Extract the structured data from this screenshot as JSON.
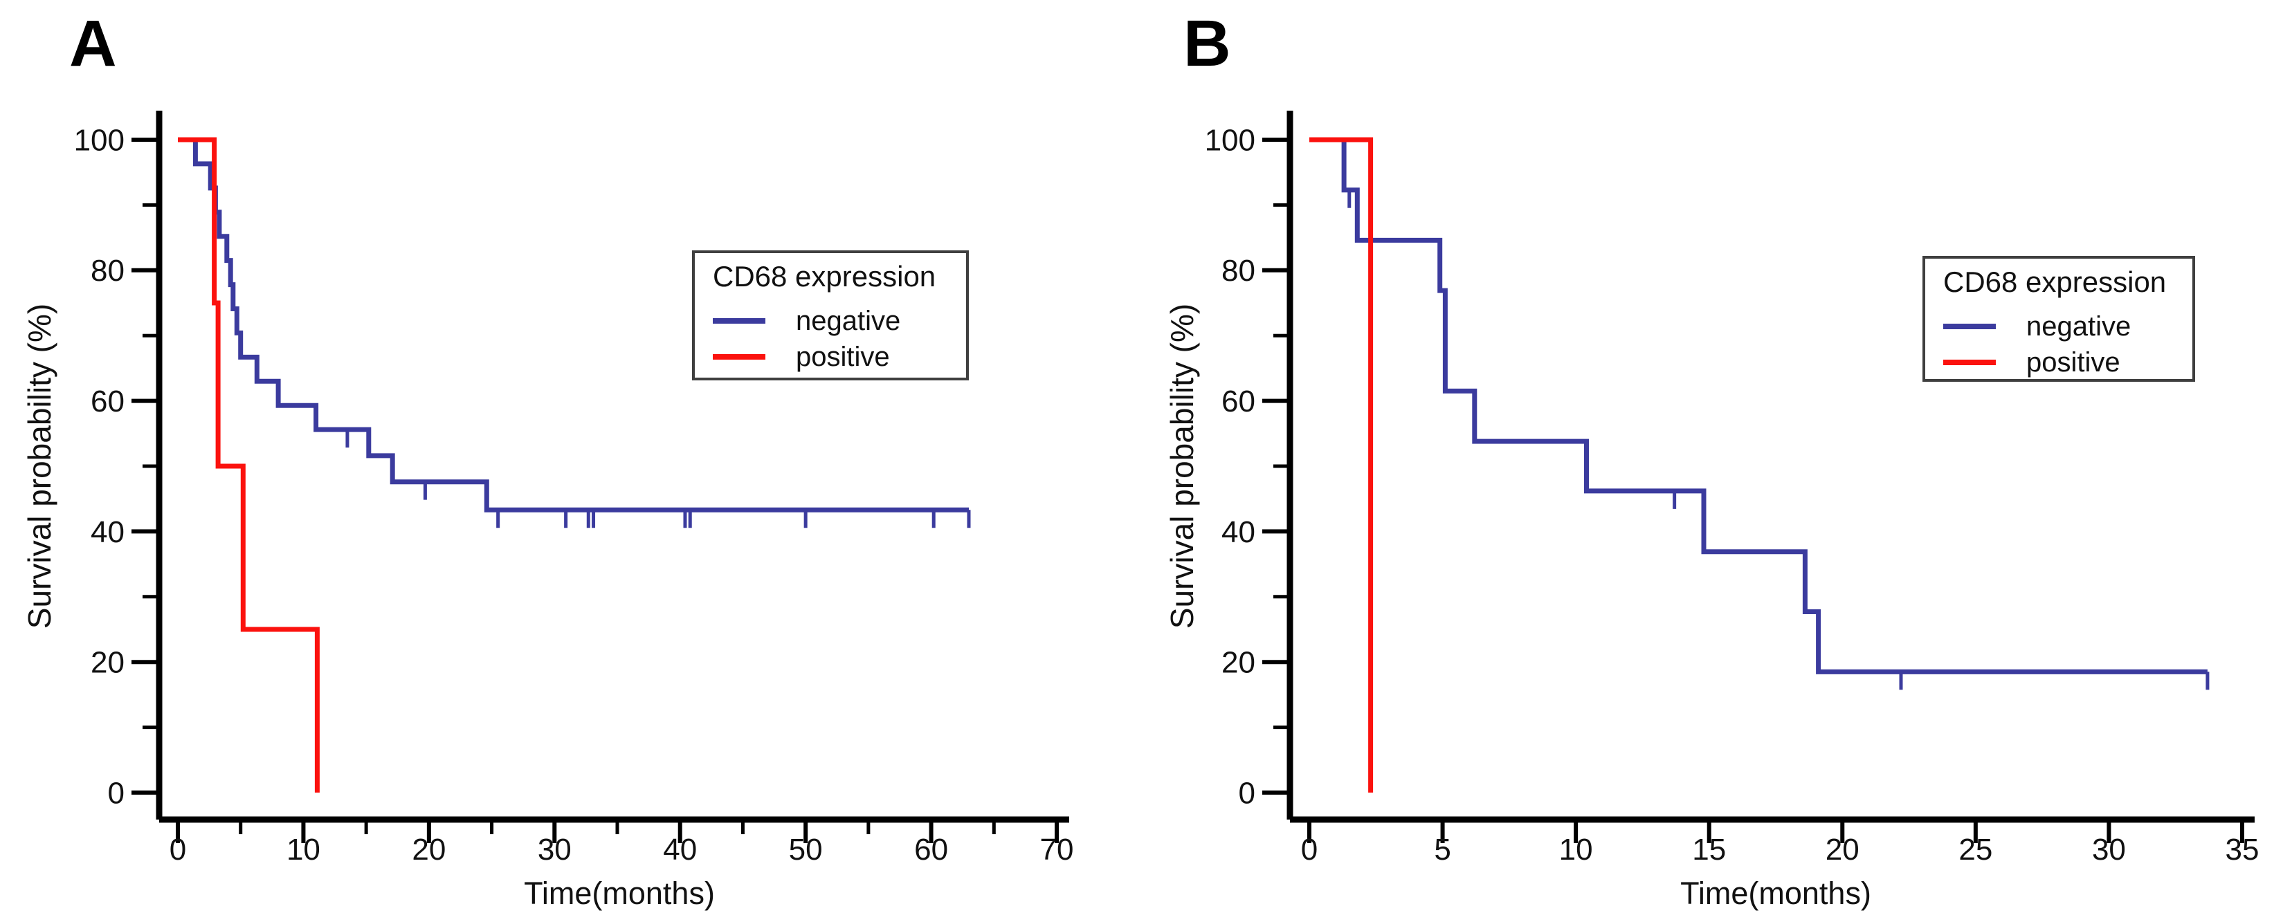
{
  "figure": {
    "background": "#ffffff",
    "axis_color": "#000000",
    "tick_label_color": "#111111"
  },
  "chart_data": [
    {
      "type": "line",
      "subtype": "kaplan-meier-step",
      "panel_label": "A",
      "xlabel": "Time(months)",
      "ylabel": "Survival probability (%)",
      "xlim": [
        0,
        70
      ],
      "ylim": [
        0,
        100
      ],
      "grid": false,
      "legend_position": "inside-right",
      "x_ticks_major": [
        0,
        10,
        20,
        30,
        40,
        50,
        60,
        70
      ],
      "x_ticks_minor": [
        5,
        15,
        25,
        35,
        45,
        55,
        65
      ],
      "y_ticks_major": [
        0,
        20,
        40,
        60,
        80,
        100
      ],
      "y_ticks_minor": [
        10,
        30,
        50,
        70,
        90
      ],
      "legend": {
        "title": "CD68 expression",
        "items": [
          {
            "label": "negative",
            "color": "#3b3b9e"
          },
          {
            "label": "positive",
            "color": "#fb120e"
          }
        ]
      },
      "series": [
        {
          "name": "negative",
          "color": "#3b3b9e",
          "steps": [
            [
              0,
              100
            ],
            [
              1.4,
              96.3
            ],
            [
              2.6,
              92.6
            ],
            [
              3.0,
              88.9
            ],
            [
              3.3,
              85.2
            ],
            [
              3.9,
              81.5
            ],
            [
              4.2,
              77.8
            ],
            [
              4.4,
              74.1
            ],
            [
              4.7,
              70.4
            ],
            [
              5.0,
              66.7
            ],
            [
              6.3,
              63.0
            ],
            [
              8.0,
              59.3
            ],
            [
              11.0,
              55.6
            ],
            [
              15.2,
              51.6
            ],
            [
              17.1,
              47.6
            ],
            [
              24.6,
              43.3
            ]
          ],
          "end_time": 63.0,
          "censors": [
            [
              13.5,
              55.6
            ],
            [
              19.7,
              47.6
            ],
            [
              25.5,
              43.3
            ],
            [
              30.9,
              43.3
            ],
            [
              32.7,
              43.3
            ],
            [
              33.1,
              43.3
            ],
            [
              40.4,
              43.3
            ],
            [
              40.8,
              43.3
            ],
            [
              50.0,
              43.3
            ],
            [
              60.2,
              43.3
            ],
            [
              63.0,
              43.3
            ]
          ]
        },
        {
          "name": "positive",
          "color": "#fb120e",
          "steps": [
            [
              0,
              100
            ],
            [
              2.9,
              75
            ],
            [
              3.2,
              50
            ],
            [
              5.2,
              25
            ],
            [
              11.1,
              0
            ]
          ],
          "end_time": 11.1,
          "censors": []
        }
      ]
    },
    {
      "type": "line",
      "subtype": "kaplan-meier-step",
      "panel_label": "B",
      "xlabel": "Time(months)",
      "ylabel": "Survival probability (%)",
      "xlim": [
        0,
        35
      ],
      "ylim": [
        0,
        100
      ],
      "grid": false,
      "legend_position": "inside-right",
      "x_ticks_major": [
        0,
        5,
        10,
        15,
        20,
        25,
        30,
        35
      ],
      "x_ticks_minor": [],
      "y_ticks_major": [
        0,
        20,
        40,
        60,
        80,
        100
      ],
      "y_ticks_minor": [
        10,
        30,
        50,
        70,
        90
      ],
      "legend": {
        "title": "CD68 expression",
        "items": [
          {
            "label": "negative",
            "color": "#3b3b9e"
          },
          {
            "label": "positive",
            "color": "#fb120e"
          }
        ]
      },
      "series": [
        {
          "name": "negative",
          "color": "#3b3b9e",
          "steps": [
            [
              0,
              100
            ],
            [
              1.3,
              92.3
            ],
            [
              1.8,
              84.6
            ],
            [
              4.9,
              76.9
            ],
            [
              5.1,
              61.5
            ],
            [
              6.2,
              53.8
            ],
            [
              10.4,
              46.2
            ],
            [
              14.8,
              36.9
            ],
            [
              18.6,
              27.7
            ],
            [
              19.1,
              18.5
            ]
          ],
          "end_time": 33.7,
          "censors": [
            [
              1.5,
              92.3
            ],
            [
              13.7,
              46.2
            ],
            [
              22.2,
              18.5
            ],
            [
              33.7,
              18.5
            ]
          ]
        },
        {
          "name": "positive",
          "color": "#fb120e",
          "steps": [
            [
              0,
              100
            ],
            [
              2.3,
              0
            ]
          ],
          "end_time": 2.3,
          "censors": []
        }
      ]
    }
  ]
}
